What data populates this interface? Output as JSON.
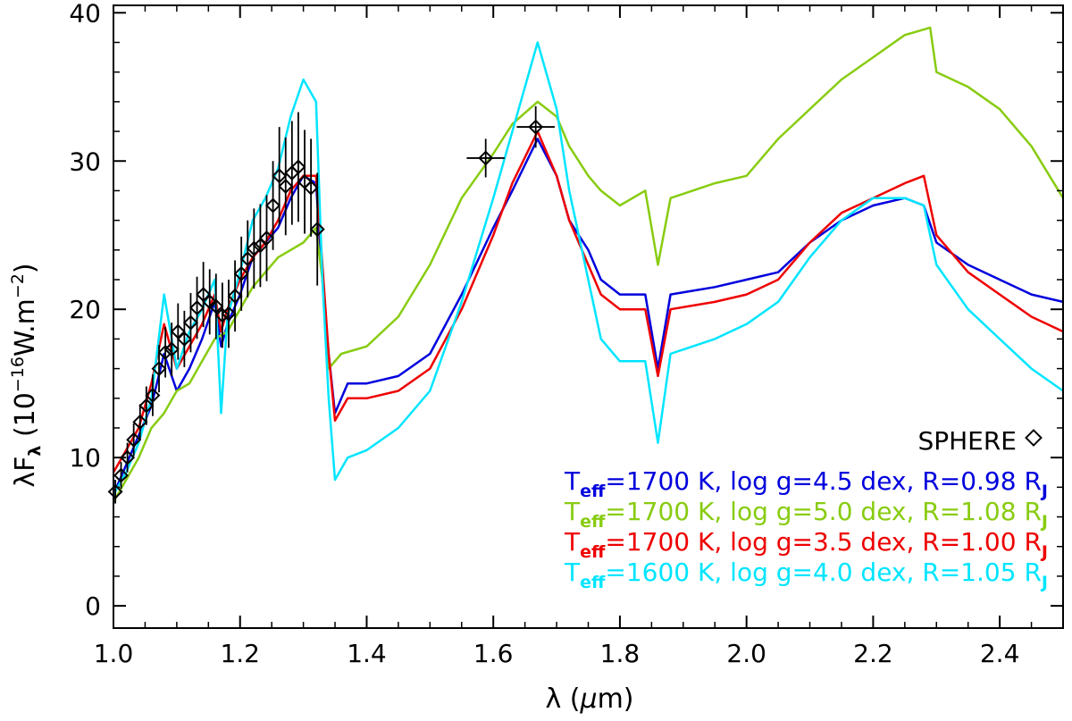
{
  "chart_data": {
    "type": "line",
    "xlabel": "λ (μm)",
    "ylabel": "λF_λ (10^-16 W.m^-2)",
    "xlim": [
      1.0,
      2.5
    ],
    "ylim": [
      -1.5,
      40.5
    ],
    "xticks": [
      1.0,
      1.2,
      1.4,
      1.6,
      1.8,
      2.0,
      2.2,
      2.4
    ],
    "xtick_labels": [
      "1.0",
      "1.2",
      "1.4",
      "1.6",
      "1.8",
      "2.0",
      "2.2",
      "2.4"
    ],
    "yticks": [
      0,
      10,
      20,
      30,
      40
    ],
    "ytick_labels": [
      "0",
      "10",
      "20",
      "30",
      "40"
    ],
    "ylabel_text": {
      "lam": "λF",
      "sub": "λ",
      "pre": " (10",
      "sup1": "−16",
      "mid": "W.m",
      "sup2": "−2",
      "post": ")"
    },
    "xlabel_text": {
      "lam": "λ",
      "paren_open": " (",
      "mu": "μ",
      "unit": "m)"
    },
    "series": [
      {
        "name": "Teff=1700 K, log g=4.5 dex, R=0.98 RJ",
        "color": "#0000dd",
        "legend": {
          "T": "T",
          "sub": "eff",
          "body": "=1700 K, log g=4.5 dex, R=0.98 R",
          "rsub": "J"
        },
        "points": [
          [
            1.0,
            7.5
          ],
          [
            1.02,
            9.5
          ],
          [
            1.04,
            11.5
          ],
          [
            1.06,
            13.5
          ],
          [
            1.08,
            17.0
          ],
          [
            1.1,
            14.5
          ],
          [
            1.12,
            16.0
          ],
          [
            1.14,
            18.0
          ],
          [
            1.16,
            20.5
          ],
          [
            1.17,
            17.5
          ],
          [
            1.18,
            19.0
          ],
          [
            1.2,
            21.0
          ],
          [
            1.22,
            23.5
          ],
          [
            1.24,
            24.5
          ],
          [
            1.26,
            25.5
          ],
          [
            1.28,
            27.5
          ],
          [
            1.3,
            29.0
          ],
          [
            1.32,
            28.5
          ],
          [
            1.33,
            22.0
          ],
          [
            1.34,
            17.0
          ],
          [
            1.35,
            13.0
          ],
          [
            1.37,
            15.0
          ],
          [
            1.4,
            15.0
          ],
          [
            1.45,
            15.5
          ],
          [
            1.5,
            17.0
          ],
          [
            1.55,
            21.0
          ],
          [
            1.6,
            25.5
          ],
          [
            1.63,
            28.0
          ],
          [
            1.67,
            31.5
          ],
          [
            1.7,
            29.0
          ],
          [
            1.72,
            26.0
          ],
          [
            1.75,
            24.0
          ],
          [
            1.77,
            22.0
          ],
          [
            1.8,
            21.0
          ],
          [
            1.84,
            21.0
          ],
          [
            1.86,
            16.0
          ],
          [
            1.88,
            21.0
          ],
          [
            1.95,
            21.5
          ],
          [
            2.0,
            22.0
          ],
          [
            2.05,
            22.5
          ],
          [
            2.1,
            24.5
          ],
          [
            2.15,
            26.0
          ],
          [
            2.2,
            27.0
          ],
          [
            2.25,
            27.5
          ],
          [
            2.28,
            27.0
          ],
          [
            2.3,
            24.5
          ],
          [
            2.35,
            23.0
          ],
          [
            2.4,
            22.0
          ],
          [
            2.45,
            21.0
          ],
          [
            2.5,
            20.5
          ]
        ]
      },
      {
        "name": "Teff=1700 K, log g=5.0 dex, R=1.08 RJ",
        "color": "#88cc11",
        "legend": {
          "T": "T",
          "sub": "eff",
          "body": "=1700 K, log g=5.0 dex, R=1.08 R",
          "rsub": "J"
        },
        "points": [
          [
            1.0,
            7.0
          ],
          [
            1.02,
            8.5
          ],
          [
            1.04,
            10.0
          ],
          [
            1.06,
            12.0
          ],
          [
            1.08,
            13.0
          ],
          [
            1.1,
            14.5
          ],
          [
            1.12,
            15.0
          ],
          [
            1.14,
            16.5
          ],
          [
            1.16,
            18.0
          ],
          [
            1.18,
            18.5
          ],
          [
            1.2,
            20.0
          ],
          [
            1.22,
            21.5
          ],
          [
            1.24,
            22.5
          ],
          [
            1.26,
            23.5
          ],
          [
            1.28,
            24.0
          ],
          [
            1.3,
            24.5
          ],
          [
            1.32,
            25.5
          ],
          [
            1.33,
            22.0
          ],
          [
            1.34,
            16.0
          ],
          [
            1.36,
            17.0
          ],
          [
            1.4,
            17.5
          ],
          [
            1.45,
            19.5
          ],
          [
            1.5,
            23.0
          ],
          [
            1.55,
            27.5
          ],
          [
            1.6,
            30.5
          ],
          [
            1.63,
            32.5
          ],
          [
            1.67,
            34.0
          ],
          [
            1.7,
            33.0
          ],
          [
            1.72,
            31.0
          ],
          [
            1.75,
            29.0
          ],
          [
            1.77,
            28.0
          ],
          [
            1.8,
            27.0
          ],
          [
            1.84,
            28.0
          ],
          [
            1.86,
            23.0
          ],
          [
            1.88,
            27.5
          ],
          [
            1.95,
            28.5
          ],
          [
            2.0,
            29.0
          ],
          [
            2.05,
            31.5
          ],
          [
            2.1,
            33.5
          ],
          [
            2.15,
            35.5
          ],
          [
            2.2,
            37.0
          ],
          [
            2.25,
            38.5
          ],
          [
            2.29,
            39.0
          ],
          [
            2.3,
            36.0
          ],
          [
            2.35,
            35.0
          ],
          [
            2.4,
            33.5
          ],
          [
            2.45,
            31.0
          ],
          [
            2.5,
            27.5
          ]
        ]
      },
      {
        "name": "Teff=1700 K, log g=3.5 dex, R=1.00 RJ",
        "color": "#ee0000",
        "legend": {
          "T": "T",
          "sub": "eff",
          "body": "=1700 K, log g=3.5 dex, R=1.00 R",
          "rsub": "J"
        },
        "points": [
          [
            1.0,
            9.0
          ],
          [
            1.02,
            10.5
          ],
          [
            1.04,
            12.0
          ],
          [
            1.06,
            15.0
          ],
          [
            1.08,
            19.0
          ],
          [
            1.1,
            16.0
          ],
          [
            1.12,
            17.5
          ],
          [
            1.14,
            19.0
          ],
          [
            1.16,
            21.0
          ],
          [
            1.17,
            18.5
          ],
          [
            1.18,
            20.0
          ],
          [
            1.2,
            22.0
          ],
          [
            1.22,
            23.5
          ],
          [
            1.24,
            24.5
          ],
          [
            1.26,
            26.0
          ],
          [
            1.28,
            28.0
          ],
          [
            1.3,
            29.0
          ],
          [
            1.32,
            29.0
          ],
          [
            1.33,
            23.0
          ],
          [
            1.34,
            17.0
          ],
          [
            1.35,
            12.5
          ],
          [
            1.37,
            14.0
          ],
          [
            1.4,
            14.0
          ],
          [
            1.45,
            14.5
          ],
          [
            1.5,
            16.0
          ],
          [
            1.55,
            20.0
          ],
          [
            1.6,
            25.0
          ],
          [
            1.63,
            28.5
          ],
          [
            1.67,
            32.0
          ],
          [
            1.7,
            29.0
          ],
          [
            1.72,
            26.0
          ],
          [
            1.75,
            23.0
          ],
          [
            1.77,
            21.0
          ],
          [
            1.8,
            20.0
          ],
          [
            1.84,
            20.0
          ],
          [
            1.86,
            15.5
          ],
          [
            1.88,
            20.0
          ],
          [
            1.95,
            20.5
          ],
          [
            2.0,
            21.0
          ],
          [
            2.05,
            22.0
          ],
          [
            2.1,
            24.5
          ],
          [
            2.15,
            26.5
          ],
          [
            2.2,
            27.5
          ],
          [
            2.25,
            28.5
          ],
          [
            2.28,
            29.0
          ],
          [
            2.3,
            25.0
          ],
          [
            2.35,
            22.5
          ],
          [
            2.4,
            21.0
          ],
          [
            2.45,
            19.5
          ],
          [
            2.5,
            18.5
          ]
        ]
      },
      {
        "name": "Teff=1600 K, log g=4.0 dex, R=1.05 RJ",
        "color": "#00e5ff",
        "legend": {
          "T": "T",
          "sub": "eff",
          "body": "=1600 K, log g=4.0 dex, R=1.05 R",
          "rsub": "J"
        },
        "points": [
          [
            1.0,
            7.5
          ],
          [
            1.02,
            9.0
          ],
          [
            1.04,
            11.0
          ],
          [
            1.06,
            14.0
          ],
          [
            1.08,
            21.0
          ],
          [
            1.1,
            16.0
          ],
          [
            1.12,
            18.5
          ],
          [
            1.14,
            20.0
          ],
          [
            1.16,
            22.0
          ],
          [
            1.17,
            13.0
          ],
          [
            1.18,
            19.5
          ],
          [
            1.2,
            22.5
          ],
          [
            1.22,
            26.0
          ],
          [
            1.24,
            27.5
          ],
          [
            1.26,
            29.5
          ],
          [
            1.28,
            33.0
          ],
          [
            1.3,
            35.5
          ],
          [
            1.32,
            34.0
          ],
          [
            1.33,
            22.0
          ],
          [
            1.34,
            14.0
          ],
          [
            1.35,
            8.5
          ],
          [
            1.37,
            10.0
          ],
          [
            1.4,
            10.5
          ],
          [
            1.45,
            12.0
          ],
          [
            1.5,
            14.5
          ],
          [
            1.55,
            20.5
          ],
          [
            1.6,
            27.5
          ],
          [
            1.63,
            32.0
          ],
          [
            1.67,
            38.0
          ],
          [
            1.7,
            33.5
          ],
          [
            1.72,
            28.0
          ],
          [
            1.75,
            22.0
          ],
          [
            1.77,
            18.0
          ],
          [
            1.8,
            16.5
          ],
          [
            1.84,
            16.5
          ],
          [
            1.86,
            11.0
          ],
          [
            1.88,
            17.0
          ],
          [
            1.95,
            18.0
          ],
          [
            2.0,
            19.0
          ],
          [
            2.05,
            20.5
          ],
          [
            2.1,
            23.5
          ],
          [
            2.15,
            26.0
          ],
          [
            2.2,
            27.5
          ],
          [
            2.25,
            27.5
          ],
          [
            2.28,
            27.0
          ],
          [
            2.3,
            23.0
          ],
          [
            2.35,
            20.0
          ],
          [
            2.4,
            18.0
          ],
          [
            2.45,
            16.0
          ],
          [
            2.5,
            14.5
          ]
        ]
      }
    ],
    "sphere_label": "SPHERE",
    "sphere": [
      {
        "x": 1.003,
        "y": 7.7,
        "yerr": 0.8,
        "xerr": 0
      },
      {
        "x": 1.012,
        "y": 8.8,
        "yerr": 0.9,
        "xerr": 0
      },
      {
        "x": 1.022,
        "y": 10.0,
        "yerr": 1.0,
        "xerr": 0
      },
      {
        "x": 1.032,
        "y": 11.2,
        "yerr": 1.1,
        "xerr": 0
      },
      {
        "x": 1.042,
        "y": 12.4,
        "yerr": 1.2,
        "xerr": 0
      },
      {
        "x": 1.052,
        "y": 13.5,
        "yerr": 1.3,
        "xerr": 0
      },
      {
        "x": 1.062,
        "y": 14.2,
        "yerr": 1.4,
        "xerr": 0
      },
      {
        "x": 1.072,
        "y": 16.0,
        "yerr": 1.6,
        "xerr": 0
      },
      {
        "x": 1.082,
        "y": 17.1,
        "yerr": 1.7,
        "xerr": 0
      },
      {
        "x": 1.092,
        "y": 17.3,
        "yerr": 1.8,
        "xerr": 0
      },
      {
        "x": 1.102,
        "y": 18.5,
        "yerr": 1.9,
        "xerr": 0
      },
      {
        "x": 1.112,
        "y": 18.0,
        "yerr": 1.9,
        "xerr": 0
      },
      {
        "x": 1.122,
        "y": 19.1,
        "yerr": 2.0,
        "xerr": 0
      },
      {
        "x": 1.132,
        "y": 20.1,
        "yerr": 2.1,
        "xerr": 0
      },
      {
        "x": 1.142,
        "y": 21.0,
        "yerr": 2.2,
        "xerr": 0
      },
      {
        "x": 1.152,
        "y": 20.5,
        "yerr": 2.2,
        "xerr": 0
      },
      {
        "x": 1.162,
        "y": 20.2,
        "yerr": 2.2,
        "xerr": 0
      },
      {
        "x": 1.172,
        "y": 19.6,
        "yerr": 2.2,
        "xerr": 0
      },
      {
        "x": 1.182,
        "y": 19.7,
        "yerr": 2.3,
        "xerr": 0
      },
      {
        "x": 1.192,
        "y": 20.9,
        "yerr": 2.4,
        "xerr": 0
      },
      {
        "x": 1.202,
        "y": 22.4,
        "yerr": 2.5,
        "xerr": 0
      },
      {
        "x": 1.212,
        "y": 23.4,
        "yerr": 2.6,
        "xerr": 0
      },
      {
        "x": 1.222,
        "y": 24.1,
        "yerr": 2.7,
        "xerr": 0
      },
      {
        "x": 1.232,
        "y": 24.3,
        "yerr": 2.8,
        "xerr": 0
      },
      {
        "x": 1.242,
        "y": 24.8,
        "yerr": 2.9,
        "xerr": 0
      },
      {
        "x": 1.252,
        "y": 27.0,
        "yerr": 3.0,
        "xerr": 0
      },
      {
        "x": 1.262,
        "y": 29.0,
        "yerr": 3.3,
        "xerr": 0
      },
      {
        "x": 1.272,
        "y": 28.3,
        "yerr": 3.3,
        "xerr": 0
      },
      {
        "x": 1.282,
        "y": 29.2,
        "yerr": 3.5,
        "xerr": 0
      },
      {
        "x": 1.292,
        "y": 29.6,
        "yerr": 3.7,
        "xerr": 0
      },
      {
        "x": 1.302,
        "y": 28.6,
        "yerr": 3.5,
        "xerr": 0
      },
      {
        "x": 1.312,
        "y": 28.2,
        "yerr": 3.3,
        "xerr": 0
      },
      {
        "x": 1.322,
        "y": 25.4,
        "yerr": 3.8,
        "xerr": 0
      },
      {
        "x": 1.588,
        "y": 30.2,
        "yerr": 1.3,
        "xerr": 0.03
      },
      {
        "x": 1.667,
        "y": 32.3,
        "yerr": 1.4,
        "xerr": 0.03
      }
    ]
  }
}
